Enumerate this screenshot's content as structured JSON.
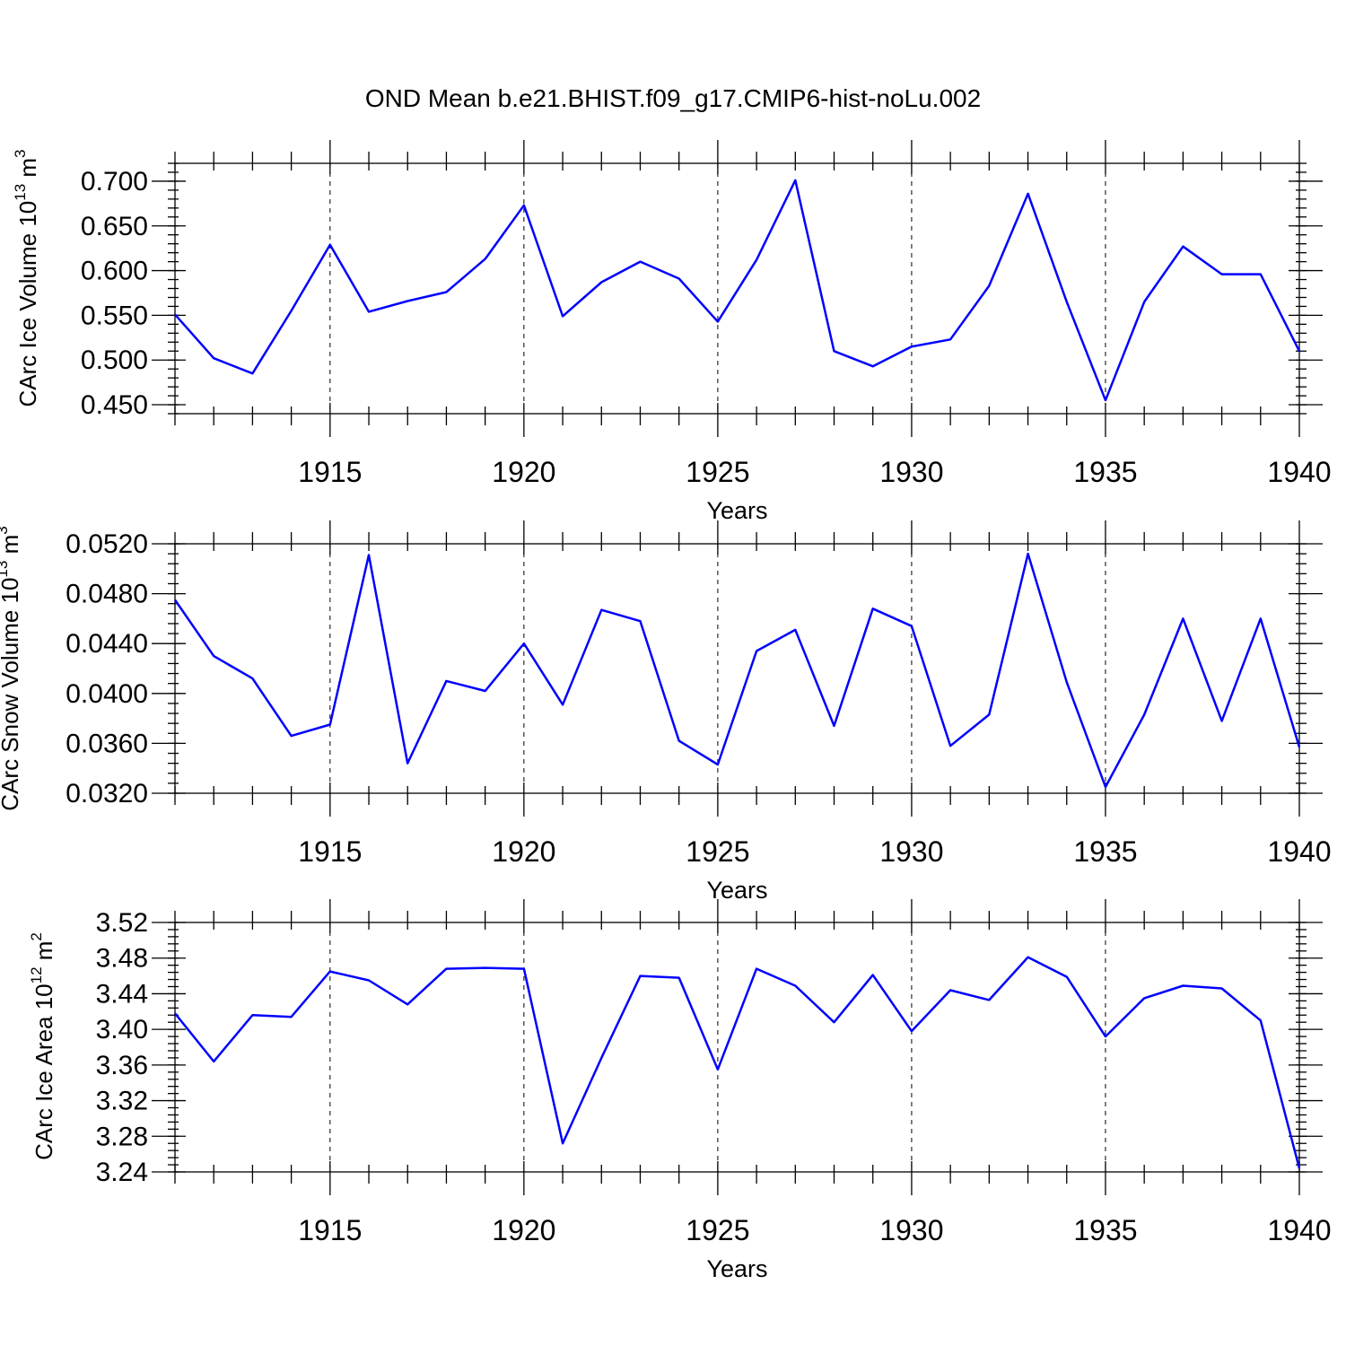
{
  "title": "OND Mean b.e21.BHIST.f09_g17.CMIP6-hist-noLu.002",
  "chart_data": [
    {
      "type": "line",
      "ylabel_main": "CArc Ice Volume 10",
      "ylabel_exp": "13",
      "ylabel_unit": " m",
      "ylabel_unit_exp": "3",
      "xlabel": "Years",
      "xlim": [
        1911,
        1940
      ],
      "ylim": [
        0.44,
        0.72
      ],
      "yticks": [
        0.45,
        0.5,
        0.55,
        0.6,
        0.65,
        0.7
      ],
      "ytick_labels": [
        "0.450",
        "0.500",
        "0.550",
        "0.600",
        "0.650",
        "0.700"
      ],
      "xticks": [
        1915,
        1920,
        1925,
        1930,
        1935,
        1940
      ],
      "xtick_labels": [
        "1915",
        "1920",
        "1925",
        "1930",
        "1935",
        "1940"
      ],
      "line_color": "#0000ff",
      "x": [
        1911,
        1912,
        1913,
        1914,
        1915,
        1916,
        1917,
        1918,
        1919,
        1920,
        1921,
        1922,
        1923,
        1924,
        1925,
        1926,
        1927,
        1928,
        1929,
        1930,
        1931,
        1932,
        1933,
        1934,
        1935,
        1936,
        1937,
        1938,
        1939,
        1940
      ],
      "values": [
        0.551,
        0.502,
        0.485,
        0.555,
        0.629,
        0.554,
        0.566,
        0.576,
        0.613,
        0.673,
        0.549,
        0.587,
        0.61,
        0.591,
        0.543,
        0.612,
        0.701,
        0.51,
        0.493,
        0.515,
        0.523,
        0.583,
        0.686,
        0.565,
        0.455,
        0.565,
        0.627,
        0.596,
        0.596,
        0.51
      ]
    },
    {
      "type": "line",
      "ylabel_main": "CArc Snow Volume 10",
      "ylabel_exp": "13",
      "ylabel_unit": " m",
      "ylabel_unit_exp": "3",
      "xlabel": "Years",
      "xlim": [
        1911,
        1940
      ],
      "ylim": [
        0.032,
        0.052
      ],
      "yticks": [
        0.032,
        0.036,
        0.04,
        0.044,
        0.048,
        0.052
      ],
      "ytick_labels": [
        "0.0320",
        "0.0360",
        "0.0400",
        "0.0440",
        "0.0480",
        "0.0520"
      ],
      "xticks": [
        1915,
        1920,
        1925,
        1930,
        1935,
        1940
      ],
      "xtick_labels": [
        "1915",
        "1920",
        "1925",
        "1930",
        "1935",
        "1940"
      ],
      "line_color": "#0000ff",
      "x": [
        1911,
        1912,
        1913,
        1914,
        1915,
        1916,
        1917,
        1918,
        1919,
        1920,
        1921,
        1922,
        1923,
        1924,
        1925,
        1926,
        1927,
        1928,
        1929,
        1930,
        1931,
        1932,
        1933,
        1934,
        1935,
        1936,
        1937,
        1938,
        1939,
        1940
      ],
      "values": [
        0.0475,
        0.043,
        0.0412,
        0.0366,
        0.0375,
        0.0511,
        0.0344,
        0.041,
        0.0402,
        0.044,
        0.0391,
        0.0467,
        0.0458,
        0.0362,
        0.0343,
        0.0434,
        0.0451,
        0.0374,
        0.0468,
        0.0454,
        0.0358,
        0.0383,
        0.0512,
        0.0409,
        0.0325,
        0.0383,
        0.046,
        0.0378,
        0.046,
        0.0357
      ]
    },
    {
      "type": "line",
      "ylabel_main": "CArc Ice Area 10",
      "ylabel_exp": "12",
      "ylabel_unit": " m",
      "ylabel_unit_exp": "2",
      "xlabel": "Years",
      "xlim": [
        1911,
        1940
      ],
      "ylim": [
        3.24,
        3.52
      ],
      "yticks": [
        3.24,
        3.28,
        3.32,
        3.36,
        3.4,
        3.44,
        3.48,
        3.52
      ],
      "ytick_labels": [
        "3.24",
        "3.28",
        "3.32",
        "3.36",
        "3.40",
        "3.44",
        "3.48",
        "3.52"
      ],
      "xticks": [
        1915,
        1920,
        1925,
        1930,
        1935,
        1940
      ],
      "xtick_labels": [
        "1915",
        "1920",
        "1925",
        "1930",
        "1935",
        "1940"
      ],
      "line_color": "#0000ff",
      "x": [
        1911,
        1912,
        1913,
        1914,
        1915,
        1916,
        1917,
        1918,
        1919,
        1920,
        1921,
        1922,
        1923,
        1924,
        1925,
        1926,
        1927,
        1928,
        1929,
        1930,
        1931,
        1932,
        1933,
        1934,
        1935,
        1936,
        1937,
        1938,
        1939,
        1940
      ],
      "values": [
        3.418,
        3.364,
        3.416,
        3.414,
        3.465,
        3.455,
        3.428,
        3.468,
        3.469,
        3.468,
        3.272,
        3.368,
        3.46,
        3.458,
        3.355,
        3.468,
        3.449,
        3.408,
        3.461,
        3.398,
        3.444,
        3.433,
        3.481,
        3.459,
        3.392,
        3.435,
        3.449,
        3.446,
        3.41,
        3.244
      ]
    }
  ]
}
